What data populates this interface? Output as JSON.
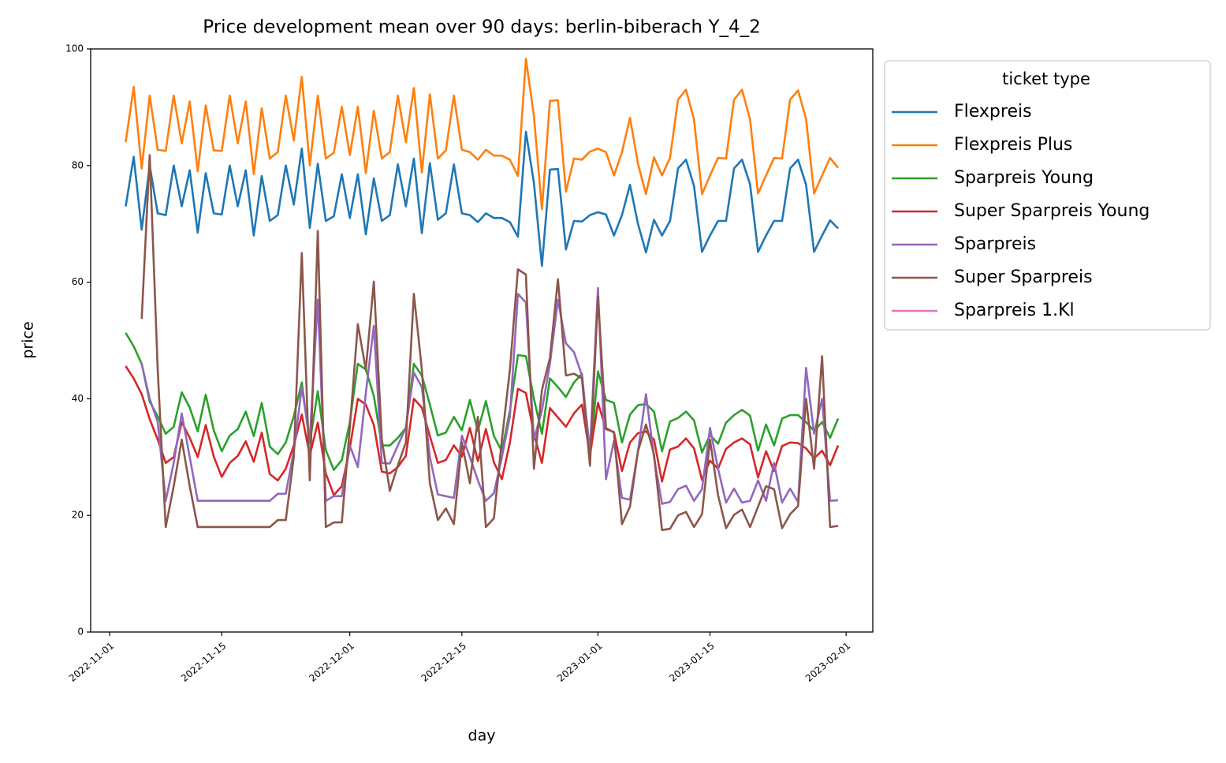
{
  "chart_data": {
    "type": "line",
    "title": "Price development mean over 90 days: berlin-biberach Y_4_2",
    "xlabel": "day",
    "ylabel": "price",
    "legend_title": "ticket type",
    "legend": "outside upper right",
    "x": [
      "2022-11-03",
      "2022-11-04",
      "2022-11-05",
      "2022-11-06",
      "2022-11-07",
      "2022-11-08",
      "2022-11-09",
      "2022-11-10",
      "2022-11-11",
      "2022-11-12",
      "2022-11-13",
      "2022-11-14",
      "2022-11-15",
      "2022-11-16",
      "2022-11-17",
      "2022-11-18",
      "2022-11-19",
      "2022-11-20",
      "2022-11-21",
      "2022-11-22",
      "2022-11-23",
      "2022-11-24",
      "2022-11-25",
      "2022-11-26",
      "2022-11-27",
      "2022-11-28",
      "2022-11-29",
      "2022-11-30",
      "2022-12-01",
      "2022-12-02",
      "2022-12-03",
      "2022-12-04",
      "2022-12-05",
      "2022-12-06",
      "2022-12-07",
      "2022-12-08",
      "2022-12-09",
      "2022-12-10",
      "2022-12-11",
      "2022-12-12",
      "2022-12-13",
      "2022-12-14",
      "2022-12-15",
      "2022-12-16",
      "2022-12-17",
      "2022-12-18",
      "2022-12-19",
      "2022-12-20",
      "2022-12-21",
      "2022-12-22",
      "2022-12-23",
      "2022-12-24",
      "2022-12-25",
      "2022-12-26",
      "2022-12-27",
      "2022-12-28",
      "2022-12-29",
      "2022-12-30",
      "2022-12-31",
      "2023-01-01",
      "2023-01-02",
      "2023-01-03",
      "2023-01-04",
      "2023-01-05",
      "2023-01-06",
      "2023-01-07",
      "2023-01-08",
      "2023-01-09",
      "2023-01-10",
      "2023-01-11",
      "2023-01-12",
      "2023-01-13",
      "2023-01-14",
      "2023-01-15",
      "2023-01-16",
      "2023-01-17",
      "2023-01-18",
      "2023-01-19",
      "2023-01-20",
      "2023-01-21",
      "2023-01-22",
      "2023-01-23",
      "2023-01-24",
      "2023-01-25",
      "2023-01-26",
      "2023-01-27",
      "2023-01-28",
      "2023-01-29",
      "2023-01-30",
      "2023-01-31"
    ],
    "xlim": [
      "2022-10-29T15:00:00Z",
      "2023-02-04T08:00:00Z"
    ],
    "xticks": [
      "2022-11-01",
      "2022-11-15",
      "2022-12-01",
      "2022-12-15",
      "2023-01-01",
      "2023-01-15",
      "2023-02-01"
    ],
    "ylim": [
      0,
      100
    ],
    "yticks": [
      0,
      20,
      40,
      60,
      80,
      100
    ],
    "series": [
      {
        "name": "Flexpreis",
        "color": "#1f77b4",
        "values": [
          73,
          81.5,
          69,
          80,
          71.8,
          71.5,
          80,
          73,
          79.2,
          68.5,
          78.7,
          71.8,
          71.6,
          80,
          73,
          79.2,
          68,
          78.2,
          70.5,
          71.5,
          80,
          73.3,
          82.9,
          69.3,
          80.3,
          70.5,
          71.3,
          78.5,
          71,
          78.5,
          68.2,
          77.8,
          70.5,
          71.5,
          80.2,
          73,
          81.2,
          68.4,
          80.4,
          70.7,
          71.8,
          80.2,
          71.8,
          71.5,
          70.3,
          71.8,
          71,
          71,
          70.3,
          67.8,
          85.8,
          77,
          62.8,
          79.3,
          79.4,
          65.6,
          70.5,
          70.4,
          71.5,
          72,
          71.6,
          68,
          71.5,
          76.7,
          70,
          65.1,
          70.7,
          68,
          70.5,
          79.5,
          81,
          76.5,
          65.2,
          68,
          70.5,
          70.5,
          79.5,
          81,
          76.8,
          65.2,
          68,
          70.5,
          70.5,
          79.5,
          81,
          76.7,
          65.2,
          68,
          70.6,
          69.2
        ]
      },
      {
        "name": "Flexpreis Plus",
        "color": "#ff7f0e",
        "values": [
          84,
          93.5,
          79.5,
          92,
          82.7,
          82.5,
          92,
          83.8,
          91,
          79,
          90.3,
          82.6,
          82.5,
          92,
          83.8,
          91,
          78.5,
          89.8,
          81.2,
          82.3,
          92,
          84.3,
          95.2,
          80,
          92,
          81.2,
          82.2,
          90.1,
          81.8,
          90.1,
          78.7,
          89.4,
          81.2,
          82.3,
          92,
          84,
          93.3,
          78.8,
          92.2,
          81.2,
          82.6,
          92,
          82.7,
          82.3,
          81,
          82.7,
          81.7,
          81.7,
          81,
          78.2,
          98.3,
          88.5,
          72.5,
          91.1,
          91.2,
          75.5,
          81.2,
          81,
          82.4,
          82.9,
          82.3,
          78.3,
          82.3,
          88.2,
          80.3,
          75.1,
          81.4,
          78.3,
          81.3,
          91.3,
          93,
          87.9,
          75.1,
          78.3,
          81.3,
          81.2,
          91.3,
          93,
          87.9,
          75.2,
          78.3,
          81.3,
          81.2,
          91.3,
          92.9,
          88,
          75.2,
          78.3,
          81.3,
          79.6
        ]
      },
      {
        "name": "Sparpreis Young",
        "color": "#2ca02c",
        "values": [
          51.3,
          49,
          46,
          39.5,
          37,
          34,
          35.2,
          41.1,
          38.5,
          34.4,
          40.7,
          34.6,
          31,
          33.7,
          34.8,
          37.8,
          33.6,
          39.3,
          31.8,
          30.5,
          32.5,
          37,
          42.8,
          32.5,
          41.3,
          31.2,
          27.8,
          29.5,
          36,
          46,
          45,
          40.5,
          32,
          32,
          33.3,
          35,
          46,
          44,
          39,
          33.7,
          34.2,
          36.9,
          34.6,
          39.8,
          34.5,
          39.6,
          33.6,
          31,
          38,
          47.5,
          47.3,
          40,
          34,
          43.5,
          42,
          40.3,
          42.8,
          44.3,
          30,
          44.7,
          39.8,
          39.3,
          32.5,
          37.3,
          38.9,
          39.1,
          37.8,
          31,
          36.1,
          36.7,
          37.8,
          36.3,
          30.8,
          33.8,
          32.3,
          35.9,
          37.2,
          38.1,
          37.1,
          31.1,
          35.6,
          32,
          36.6,
          37.2,
          37.2,
          36,
          34.5,
          36,
          33.3,
          36.6
        ]
      },
      {
        "name": "Super Sparpreis Young",
        "color": "#d62728",
        "values": [
          45.6,
          43.5,
          40.8,
          36.5,
          33,
          29,
          30,
          36,
          33.3,
          30,
          35.5,
          30.1,
          26.6,
          29,
          30.2,
          32.7,
          29.2,
          34.2,
          27.1,
          26,
          28,
          32,
          37.3,
          30.3,
          35.9,
          27.2,
          23.5,
          25,
          31.5,
          40,
          39,
          35.5,
          27.5,
          27.2,
          28.3,
          30.2,
          40,
          38.5,
          33.6,
          29,
          29.5,
          32,
          30.1,
          35,
          29.3,
          34.8,
          29.1,
          26.2,
          32.5,
          41.7,
          41,
          34,
          29,
          38.4,
          36.8,
          35.2,
          37.5,
          39,
          30.3,
          39.3,
          34.8,
          34.3,
          27.6,
          32.5,
          34.1,
          34.4,
          33,
          25.8,
          31.3,
          31.8,
          33.2,
          31.5,
          26.1,
          29.4,
          28,
          31.4,
          32.5,
          33.2,
          32.2,
          26.5,
          31,
          27.6,
          31.9,
          32.5,
          32.4,
          31.5,
          29.8,
          31.1,
          28.6,
          32
        ]
      },
      {
        "name": "Sparpreis",
        "color": "#9467bd",
        "values": [
          null,
          null,
          46,
          40,
          36,
          22.5,
          29,
          37.5,
          30,
          22.5,
          22.5,
          22.5,
          22.5,
          22.5,
          22.5,
          22.5,
          22.5,
          22.5,
          22.5,
          23.7,
          23.7,
          31,
          42,
          33,
          57,
          22.5,
          23.3,
          23.3,
          32,
          28.3,
          41,
          52.5,
          29,
          28.9,
          32,
          35,
          44.5,
          42,
          30,
          23.6,
          23.3,
          23,
          33.7,
          30,
          26,
          22.5,
          23.8,
          30,
          37,
          58,
          56.5,
          33,
          38,
          46,
          57,
          49.5,
          48,
          44,
          31,
          59,
          26.2,
          32.8,
          23,
          22.7,
          31,
          40.8,
          30,
          22,
          22.3,
          24.5,
          25.1,
          22.5,
          24.5,
          35,
          28,
          22.2,
          24.6,
          22.2,
          22.5,
          26,
          22.5,
          29,
          22.2,
          24.6,
          22.3,
          45.3,
          34,
          40,
          22.5,
          22.6
        ]
      },
      {
        "name": "Super Sparpreis",
        "color": "#8c564b",
        "values": [
          null,
          null,
          53.7,
          81.8,
          45,
          18,
          25,
          33,
          25,
          18,
          18,
          18,
          18,
          18,
          18,
          18,
          18,
          18,
          18,
          19.2,
          19.2,
          30,
          65,
          26,
          68.8,
          18,
          18.8,
          18.8,
          35,
          52.8,
          45,
          60.1,
          33,
          24.2,
          28.6,
          32.5,
          58,
          45,
          25.5,
          19.2,
          21.2,
          18.5,
          32.5,
          25.5,
          36.9,
          18,
          19.5,
          33,
          45,
          62.2,
          61.3,
          28,
          41.5,
          47,
          60.5,
          44,
          44.3,
          43.5,
          28.5,
          57.5,
          35,
          34.2,
          18.5,
          21.5,
          31,
          35.6,
          30.5,
          17.5,
          17.7,
          20,
          20.6,
          18,
          20.2,
          33,
          23.5,
          17.8,
          20.1,
          21,
          18,
          21.5,
          25,
          24.5,
          17.8,
          20.2,
          21.6,
          40,
          28,
          47.3,
          18,
          18.2
        ]
      },
      {
        "name": "Sparpreis 1.Kl",
        "color": "#e377c2",
        "values": [
          null,
          null,
          null,
          null,
          null,
          null,
          null,
          null,
          null,
          null,
          null,
          null,
          null,
          null,
          null,
          null,
          null,
          null,
          null,
          null,
          null,
          null,
          null,
          null,
          null,
          null,
          null,
          null,
          null,
          null,
          null,
          null,
          null,
          null,
          null,
          null,
          null,
          null,
          null,
          null,
          null,
          null,
          null,
          null,
          null,
          null,
          null,
          null,
          null,
          null,
          null,
          null,
          null,
          null,
          null,
          null,
          null,
          null,
          null,
          null,
          null,
          null,
          null,
          null,
          null,
          null,
          null,
          null,
          null,
          null,
          null,
          null,
          null,
          null,
          null,
          null,
          null,
          null,
          null,
          null,
          null,
          null,
          null,
          null,
          null,
          null,
          null,
          null,
          null,
          null
        ]
      }
    ]
  }
}
